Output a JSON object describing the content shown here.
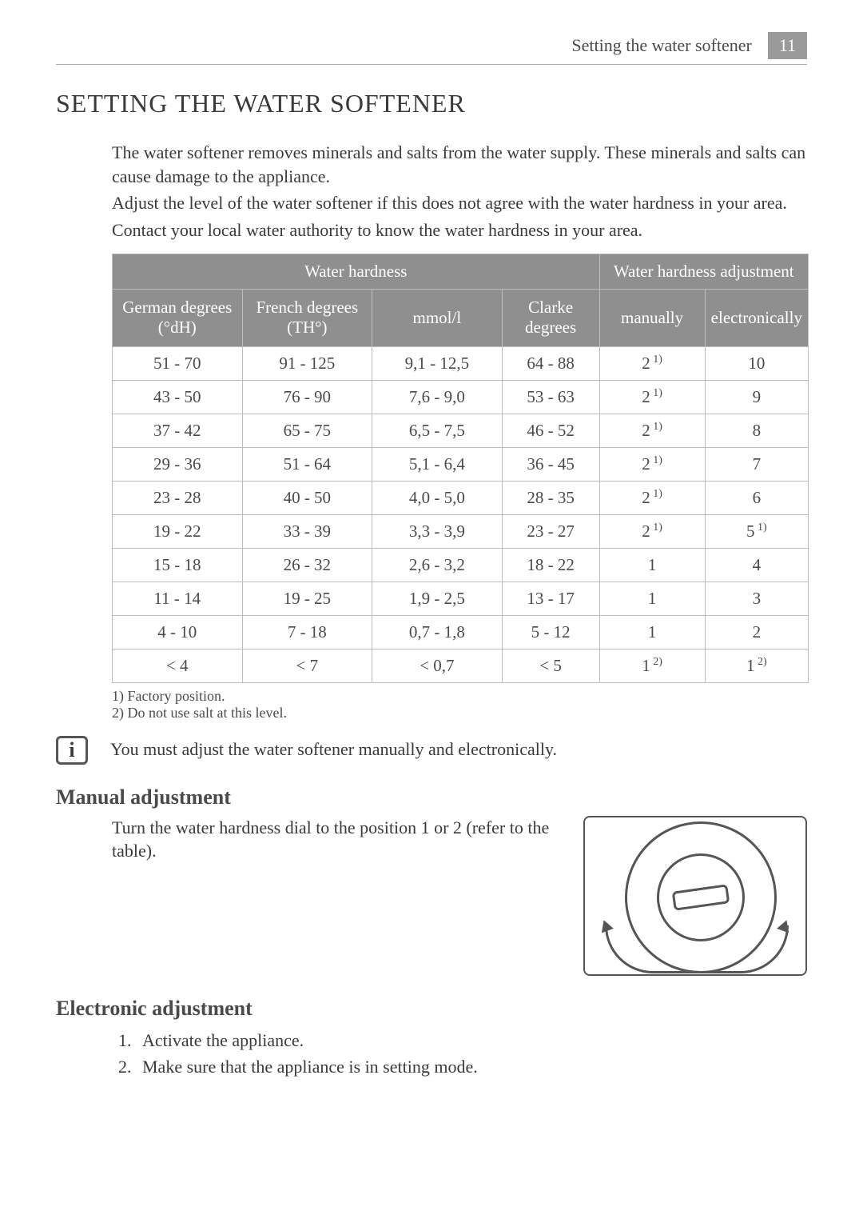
{
  "header": {
    "running_title": "Setting the water softener",
    "page_number": "11"
  },
  "section_title": "SETTING THE WATER SOFTENER",
  "intro": {
    "p1": "The water softener removes minerals and salts from the water supply. These minerals and salts can cause damage to the appliance.",
    "p2": "Adjust the level of the water softener if this does not agree with the water hardness in your area.",
    "p3": "Contact your local water authority to know the water hardness in your area."
  },
  "table": {
    "header_hardness": "Water hardness",
    "header_adjustment": "Water hardness adjustment",
    "col_dh": "German degrees (°dH)",
    "col_th": "French degrees (TH°)",
    "col_mmol": "mmol/l",
    "col_clarke": "Clarke degrees",
    "col_manual": "manually",
    "col_electronic": "electronically",
    "rows": [
      {
        "dh": "51 - 70",
        "th": "91 - 125",
        "mmol": "9,1 - 12,5",
        "clarke": "64 - 88",
        "man": "2",
        "man_sup": "1)",
        "elec": "10",
        "elec_sup": ""
      },
      {
        "dh": "43 - 50",
        "th": "76 - 90",
        "mmol": "7,6 - 9,0",
        "clarke": "53 - 63",
        "man": "2",
        "man_sup": "1)",
        "elec": "9",
        "elec_sup": ""
      },
      {
        "dh": "37 - 42",
        "th": "65 - 75",
        "mmol": "6,5 - 7,5",
        "clarke": "46 - 52",
        "man": "2",
        "man_sup": "1)",
        "elec": "8",
        "elec_sup": ""
      },
      {
        "dh": "29 - 36",
        "th": "51 - 64",
        "mmol": "5,1 - 6,4",
        "clarke": "36 - 45",
        "man": "2",
        "man_sup": "1)",
        "elec": "7",
        "elec_sup": ""
      },
      {
        "dh": "23 - 28",
        "th": "40 - 50",
        "mmol": "4,0 - 5,0",
        "clarke": "28 - 35",
        "man": "2",
        "man_sup": "1)",
        "elec": "6",
        "elec_sup": ""
      },
      {
        "dh": "19 - 22",
        "th": "33 - 39",
        "mmol": "3,3 - 3,9",
        "clarke": "23 - 27",
        "man": "2",
        "man_sup": "1)",
        "elec": "5",
        "elec_sup": "1)"
      },
      {
        "dh": "15 - 18",
        "th": "26 - 32",
        "mmol": "2,6 - 3,2",
        "clarke": "18 - 22",
        "man": "1",
        "man_sup": "",
        "elec": "4",
        "elec_sup": ""
      },
      {
        "dh": "11 - 14",
        "th": "19 - 25",
        "mmol": "1,9 - 2,5",
        "clarke": "13 - 17",
        "man": "1",
        "man_sup": "",
        "elec": "3",
        "elec_sup": ""
      },
      {
        "dh": "4 - 10",
        "th": "7 - 18",
        "mmol": "0,7 - 1,8",
        "clarke": "5 - 12",
        "man": "1",
        "man_sup": "",
        "elec": "2",
        "elec_sup": ""
      },
      {
        "dh": "< 4",
        "th": "< 7",
        "mmol": "< 0,7",
        "clarke": "< 5",
        "man": "1",
        "man_sup": "2)",
        "elec": "1",
        "elec_sup": "2)"
      }
    ],
    "footnote1": "1) Factory position.",
    "footnote2": "2) Do not use salt at this level."
  },
  "info_note": "You must adjust the water softener manually and electronically.",
  "manual": {
    "heading": "Manual adjustment",
    "text": "Turn the water hardness dial to the position 1 or 2 (refer to the table)."
  },
  "electronic": {
    "heading": "Electronic adjustment",
    "step1": "Activate the appliance.",
    "step2": "Make sure that the appliance is in setting mode."
  },
  "colors": {
    "header_bg": "#8f8f8f",
    "header_text": "#ffffff",
    "border": "#bdbdbd",
    "body_text": "#3a3a3a",
    "page_badge_bg": "#9a9a9a"
  }
}
